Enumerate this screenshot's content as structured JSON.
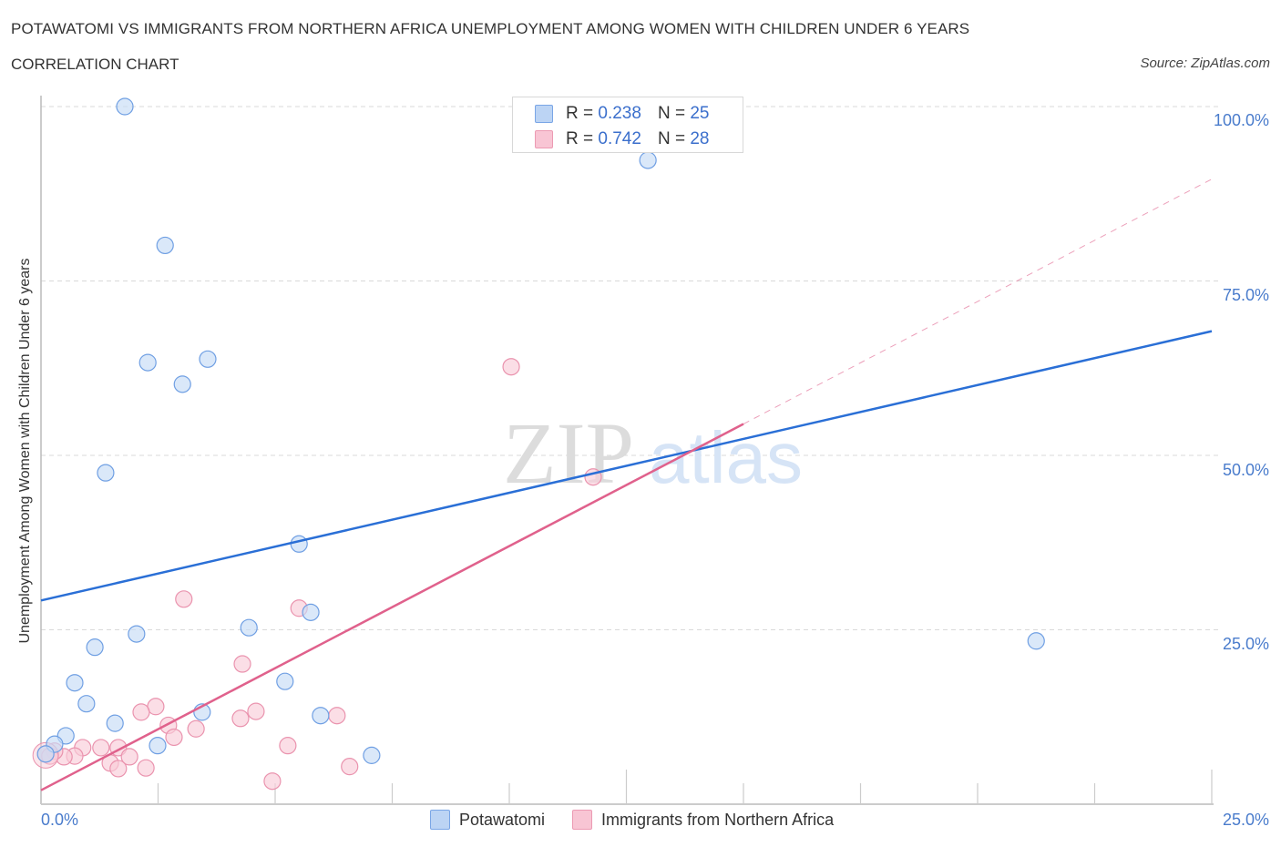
{
  "header": {
    "title": "POTAWATOMI VS IMMIGRANTS FROM NORTHERN AFRICA UNEMPLOYMENT AMONG WOMEN WITH CHILDREN UNDER 6 YEARS",
    "subtitle": "CORRELATION CHART",
    "source": "Source: ZipAtlas.com"
  },
  "axes": {
    "ylabel": "Unemployment Among Women with Children Under 6 years",
    "y_ticks": [
      "100.0%",
      "75.0%",
      "50.0%",
      "25.0%"
    ],
    "x_ticks": [
      "0.0%",
      "25.0%"
    ]
  },
  "legend": {
    "rows": [
      {
        "r_label": "R = ",
        "r_value": "0.238",
        "n_label": "N = ",
        "n_value": "25",
        "color": "#bcd4f4"
      },
      {
        "r_label": "R = ",
        "r_value": "0.742",
        "n_label": "N = ",
        "n_value": "28",
        "color": "#f8c5d4"
      }
    ],
    "series": [
      {
        "label": "Potawatomi",
        "color": "#bcd4f4"
      },
      {
        "label": "Immigrants from Northern Africa",
        "color": "#f8c5d4"
      }
    ]
  },
  "watermark": {
    "zip": "ZIP",
    "atlas": "atlas"
  },
  "colors": {
    "blue_fill": "#c6dbf6",
    "blue_stroke": "#6f9fe3",
    "blue_line": "#2a6fd6",
    "pink_fill": "#f9cdd9",
    "pink_stroke": "#ea93ae",
    "pink_line": "#e0618c",
    "tick_text": "#4a7ccc",
    "grid": "#d9d9d9"
  },
  "chart_data": {
    "type": "scatter",
    "title": "POTAWATOMI VS IMMIGRANTS FROM NORTHERN AFRICA UNEMPLOYMENT AMONG WOMEN WITH CHILDREN UNDER 6 YEARS",
    "subtitle": "CORRELATION CHART",
    "xlabel": "",
    "ylabel": "Unemployment Among Women with Children Under 6 years",
    "xlim": [
      0,
      25
    ],
    "ylim": [
      0,
      100
    ],
    "x_unit": "%",
    "y_unit": "%",
    "grid": {
      "horizontal": true,
      "style": "dashed",
      "y_values": [
        25,
        50,
        75,
        100
      ]
    },
    "legend_position": "top-center (stats) and bottom-center (series)",
    "series": [
      {
        "name": "Potawatomi",
        "R": 0.238,
        "N": 25,
        "color": "#6f9fe3",
        "points": [
          [
            1.79,
            100.0
          ],
          [
            10.76,
            99.9
          ],
          [
            12.96,
            92.3
          ],
          [
            2.65,
            80.1
          ],
          [
            2.28,
            63.3
          ],
          [
            3.56,
            63.8
          ],
          [
            3.02,
            60.2
          ],
          [
            1.38,
            47.5
          ],
          [
            5.51,
            37.3
          ],
          [
            5.76,
            27.5
          ],
          [
            2.04,
            24.4
          ],
          [
            4.44,
            25.3
          ],
          [
            1.15,
            22.5
          ],
          [
            0.72,
            17.4
          ],
          [
            5.21,
            17.6
          ],
          [
            0.97,
            14.4
          ],
          [
            1.58,
            11.6
          ],
          [
            3.44,
            13.2
          ],
          [
            5.97,
            12.7
          ],
          [
            0.53,
            9.8
          ],
          [
            2.49,
            8.4
          ],
          [
            7.06,
            7.0
          ],
          [
            0.29,
            8.6
          ],
          [
            0.1,
            7.2
          ],
          [
            21.25,
            23.4
          ]
        ],
        "trend": {
          "x": [
            0,
            25
          ],
          "y": [
            29.2,
            67.8
          ],
          "style": "solid"
        }
      },
      {
        "name": "Immigrants from Northern Africa",
        "R": 0.742,
        "N": 28,
        "color": "#ea93ae",
        "points": [
          [
            10.04,
            62.7
          ],
          [
            11.79,
            46.9
          ],
          [
            3.05,
            29.4
          ],
          [
            5.51,
            28.1
          ],
          [
            4.3,
            20.1
          ],
          [
            2.45,
            14.0
          ],
          [
            2.14,
            13.2
          ],
          [
            2.72,
            11.3
          ],
          [
            3.31,
            10.8
          ],
          [
            4.59,
            13.3
          ],
          [
            4.26,
            12.3
          ],
          [
            6.32,
            12.7
          ],
          [
            2.84,
            9.6
          ],
          [
            5.27,
            8.4
          ],
          [
            0.89,
            8.1
          ],
          [
            1.28,
            8.1
          ],
          [
            1.65,
            8.1
          ],
          [
            0.72,
            6.9
          ],
          [
            1.89,
            6.8
          ],
          [
            1.48,
            5.9
          ],
          [
            1.65,
            5.1
          ],
          [
            2.24,
            5.2
          ],
          [
            6.59,
            5.4
          ],
          [
            4.94,
            3.3
          ],
          [
            0.49,
            6.8
          ],
          [
            0.29,
            7.6
          ],
          [
            0.1,
            7.2
          ],
          [
            0.19,
            6.9
          ]
        ],
        "trend": {
          "x": [
            0,
            15.0
          ],
          "y": [
            2.0,
            54.5
          ],
          "style": "solid",
          "extension": {
            "x": [
              15.0,
              25
            ],
            "y": [
              54.5,
              89.6
            ],
            "style": "dashed"
          }
        }
      }
    ]
  }
}
